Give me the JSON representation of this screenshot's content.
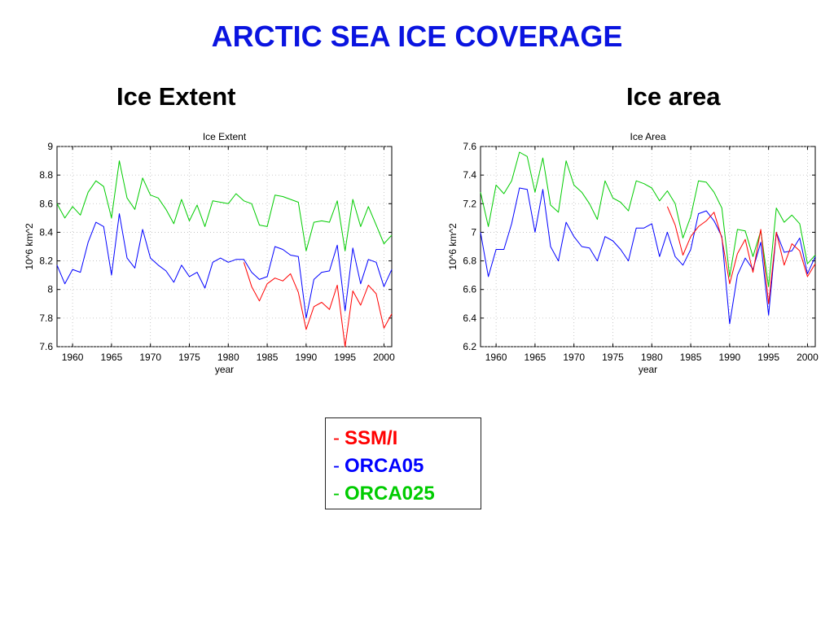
{
  "slide": {
    "title": "ARCTIC SEA ICE COVERAGE",
    "panel_titles": [
      "Ice Extent",
      "Ice area"
    ]
  },
  "legend": {
    "items": [
      {
        "dash": "-",
        "label": "SSM/I",
        "color": "#ff0000"
      },
      {
        "dash": "-",
        "label": "ORCA05",
        "color": "#0000ff"
      },
      {
        "dash": "-",
        "label": "ORCA025",
        "color": "#00cc00"
      }
    ]
  },
  "chart_data": [
    {
      "type": "line",
      "title": "Ice Extent",
      "xlabel": "year",
      "ylabel": "10^6 km^2",
      "xlim": [
        1958,
        2001
      ],
      "ylim": [
        7.6,
        9.0
      ],
      "xticks": [
        1960,
        1965,
        1970,
        1975,
        1980,
        1985,
        1990,
        1995,
        2000
      ],
      "yticks": [
        7.6,
        7.8,
        8.0,
        8.2,
        8.4,
        8.6,
        8.8,
        9.0
      ],
      "ytick_labels": [
        "7.6",
        "7.8",
        "8",
        "8.2",
        "8.4",
        "8.6",
        "8.8",
        "9"
      ],
      "grid": true,
      "series": [
        {
          "key": "orca025",
          "color": "#00cc00",
          "x": [
            1958,
            1959,
            1960,
            1961,
            1962,
            1963,
            1964,
            1965,
            1966,
            1967,
            1968,
            1969,
            1970,
            1971,
            1972,
            1973,
            1974,
            1975,
            1976,
            1977,
            1978,
            1979,
            1980,
            1981,
            1982,
            1983,
            1984,
            1985,
            1986,
            1987,
            1988,
            1989,
            1990,
            1991,
            1992,
            1993,
            1994,
            1995,
            1996,
            1997,
            1998,
            1999,
            2000,
            2001
          ],
          "y": [
            8.6,
            8.5,
            8.58,
            8.52,
            8.68,
            8.76,
            8.72,
            8.5,
            8.9,
            8.64,
            8.56,
            8.78,
            8.66,
            8.64,
            8.56,
            8.46,
            8.63,
            8.48,
            8.59,
            8.44,
            8.62,
            8.61,
            8.6,
            8.67,
            8.62,
            8.6,
            8.45,
            8.44,
            8.66,
            8.65,
            8.63,
            8.61,
            8.27,
            8.47,
            8.48,
            8.47,
            8.62,
            8.27,
            8.63,
            8.44,
            8.58,
            8.45,
            8.32,
            8.38
          ]
        },
        {
          "key": "orca05",
          "color": "#0000ff",
          "x": [
            1958,
            1959,
            1960,
            1961,
            1962,
            1963,
            1964,
            1965,
            1966,
            1967,
            1968,
            1969,
            1970,
            1971,
            1972,
            1973,
            1974,
            1975,
            1976,
            1977,
            1978,
            1979,
            1980,
            1981,
            1982,
            1983,
            1984,
            1985,
            1986,
            1987,
            1988,
            1989,
            1990,
            1991,
            1992,
            1993,
            1994,
            1995,
            1996,
            1997,
            1998,
            1999,
            2000,
            2001
          ],
          "y": [
            8.17,
            8.04,
            8.14,
            8.12,
            8.33,
            8.47,
            8.44,
            8.1,
            8.53,
            8.22,
            8.15,
            8.42,
            8.22,
            8.17,
            8.13,
            8.05,
            8.17,
            8.09,
            8.12,
            8.01,
            8.19,
            8.22,
            8.19,
            8.21,
            8.21,
            8.12,
            8.07,
            8.09,
            8.3,
            8.28,
            8.24,
            8.23,
            7.8,
            8.07,
            8.12,
            8.13,
            8.31,
            7.85,
            8.29,
            8.04,
            8.21,
            8.19,
            8.02,
            8.14
          ]
        },
        {
          "key": "ssmi",
          "color": "#ff0000",
          "x": [
            1982,
            1983,
            1984,
            1985,
            1986,
            1987,
            1988,
            1989,
            1990,
            1991,
            1992,
            1993,
            1994,
            1995,
            1996,
            1997,
            1998,
            1999,
            2000,
            2001
          ],
          "y": [
            8.19,
            8.02,
            7.92,
            8.04,
            8.08,
            8.06,
            8.11,
            7.98,
            7.72,
            7.88,
            7.91,
            7.86,
            8.03,
            7.6,
            7.99,
            7.89,
            8.03,
            7.97,
            7.73,
            7.83
          ]
        }
      ]
    },
    {
      "type": "line",
      "title": "Ice Area",
      "xlabel": "year",
      "ylabel": "10^6 km^2",
      "xlim": [
        1958,
        2001
      ],
      "ylim": [
        6.2,
        7.6
      ],
      "xticks": [
        1960,
        1965,
        1970,
        1975,
        1980,
        1985,
        1990,
        1995,
        2000
      ],
      "yticks": [
        6.2,
        6.4,
        6.6,
        6.8,
        7.0,
        7.2,
        7.4,
        7.6
      ],
      "ytick_labels": [
        "6.2",
        "6.4",
        "6.6",
        "6.8",
        "7",
        "7.2",
        "7.4",
        "7.6"
      ],
      "grid": true,
      "series": [
        {
          "key": "orca025",
          "color": "#00cc00",
          "x": [
            1958,
            1959,
            1960,
            1961,
            1962,
            1963,
            1964,
            1965,
            1966,
            1967,
            1968,
            1969,
            1970,
            1971,
            1972,
            1973,
            1974,
            1975,
            1976,
            1977,
            1978,
            1979,
            1980,
            1981,
            1982,
            1983,
            1984,
            1985,
            1986,
            1987,
            1988,
            1989,
            1990,
            1991,
            1992,
            1993,
            1994,
            1995,
            1996,
            1997,
            1998,
            1999,
            2000,
            2001
          ],
          "y": [
            7.28,
            7.04,
            7.33,
            7.27,
            7.36,
            7.56,
            7.53,
            7.28,
            7.52,
            7.19,
            7.14,
            7.5,
            7.33,
            7.28,
            7.2,
            7.09,
            7.36,
            7.24,
            7.21,
            7.15,
            7.36,
            7.34,
            7.31,
            7.22,
            7.29,
            7.2,
            6.96,
            7.11,
            7.36,
            7.35,
            7.28,
            7.17,
            6.69,
            7.02,
            7.01,
            6.83,
            7.01,
            6.62,
            7.17,
            7.07,
            7.12,
            7.06,
            6.78,
            6.84
          ]
        },
        {
          "key": "orca05",
          "color": "#0000ff",
          "x": [
            1958,
            1959,
            1960,
            1961,
            1962,
            1963,
            1964,
            1965,
            1966,
            1967,
            1968,
            1969,
            1970,
            1971,
            1972,
            1973,
            1974,
            1975,
            1976,
            1977,
            1978,
            1979,
            1980,
            1981,
            1982,
            1983,
            1984,
            1985,
            1986,
            1987,
            1988,
            1989,
            1990,
            1991,
            1992,
            1993,
            1994,
            1995,
            1996,
            1997,
            1998,
            1999,
            2000,
            2001
          ],
          "y": [
            7.0,
            6.69,
            6.88,
            6.88,
            7.06,
            7.31,
            7.3,
            7.0,
            7.3,
            6.9,
            6.8,
            7.07,
            6.97,
            6.9,
            6.89,
            6.8,
            6.97,
            6.94,
            6.88,
            6.8,
            7.03,
            7.03,
            7.06,
            6.83,
            7.0,
            6.83,
            6.77,
            6.88,
            7.13,
            7.15,
            7.08,
            6.97,
            6.36,
            6.7,
            6.82,
            6.74,
            6.93,
            6.42,
            7.0,
            6.86,
            6.87,
            6.96,
            6.71,
            6.83
          ]
        },
        {
          "key": "ssmi",
          "color": "#ff0000",
          "x": [
            1982,
            1983,
            1984,
            1985,
            1986,
            1987,
            1988,
            1989,
            1990,
            1991,
            1992,
            1993,
            1994,
            1995,
            1996,
            1997,
            1998,
            1999,
            2000,
            2001
          ],
          "y": [
            7.18,
            7.05,
            6.84,
            6.97,
            7.04,
            7.08,
            7.14,
            6.96,
            6.64,
            6.85,
            6.95,
            6.72,
            7.02,
            6.5,
            7.0,
            6.77,
            6.92,
            6.87,
            6.69,
            6.78
          ]
        }
      ]
    }
  ]
}
